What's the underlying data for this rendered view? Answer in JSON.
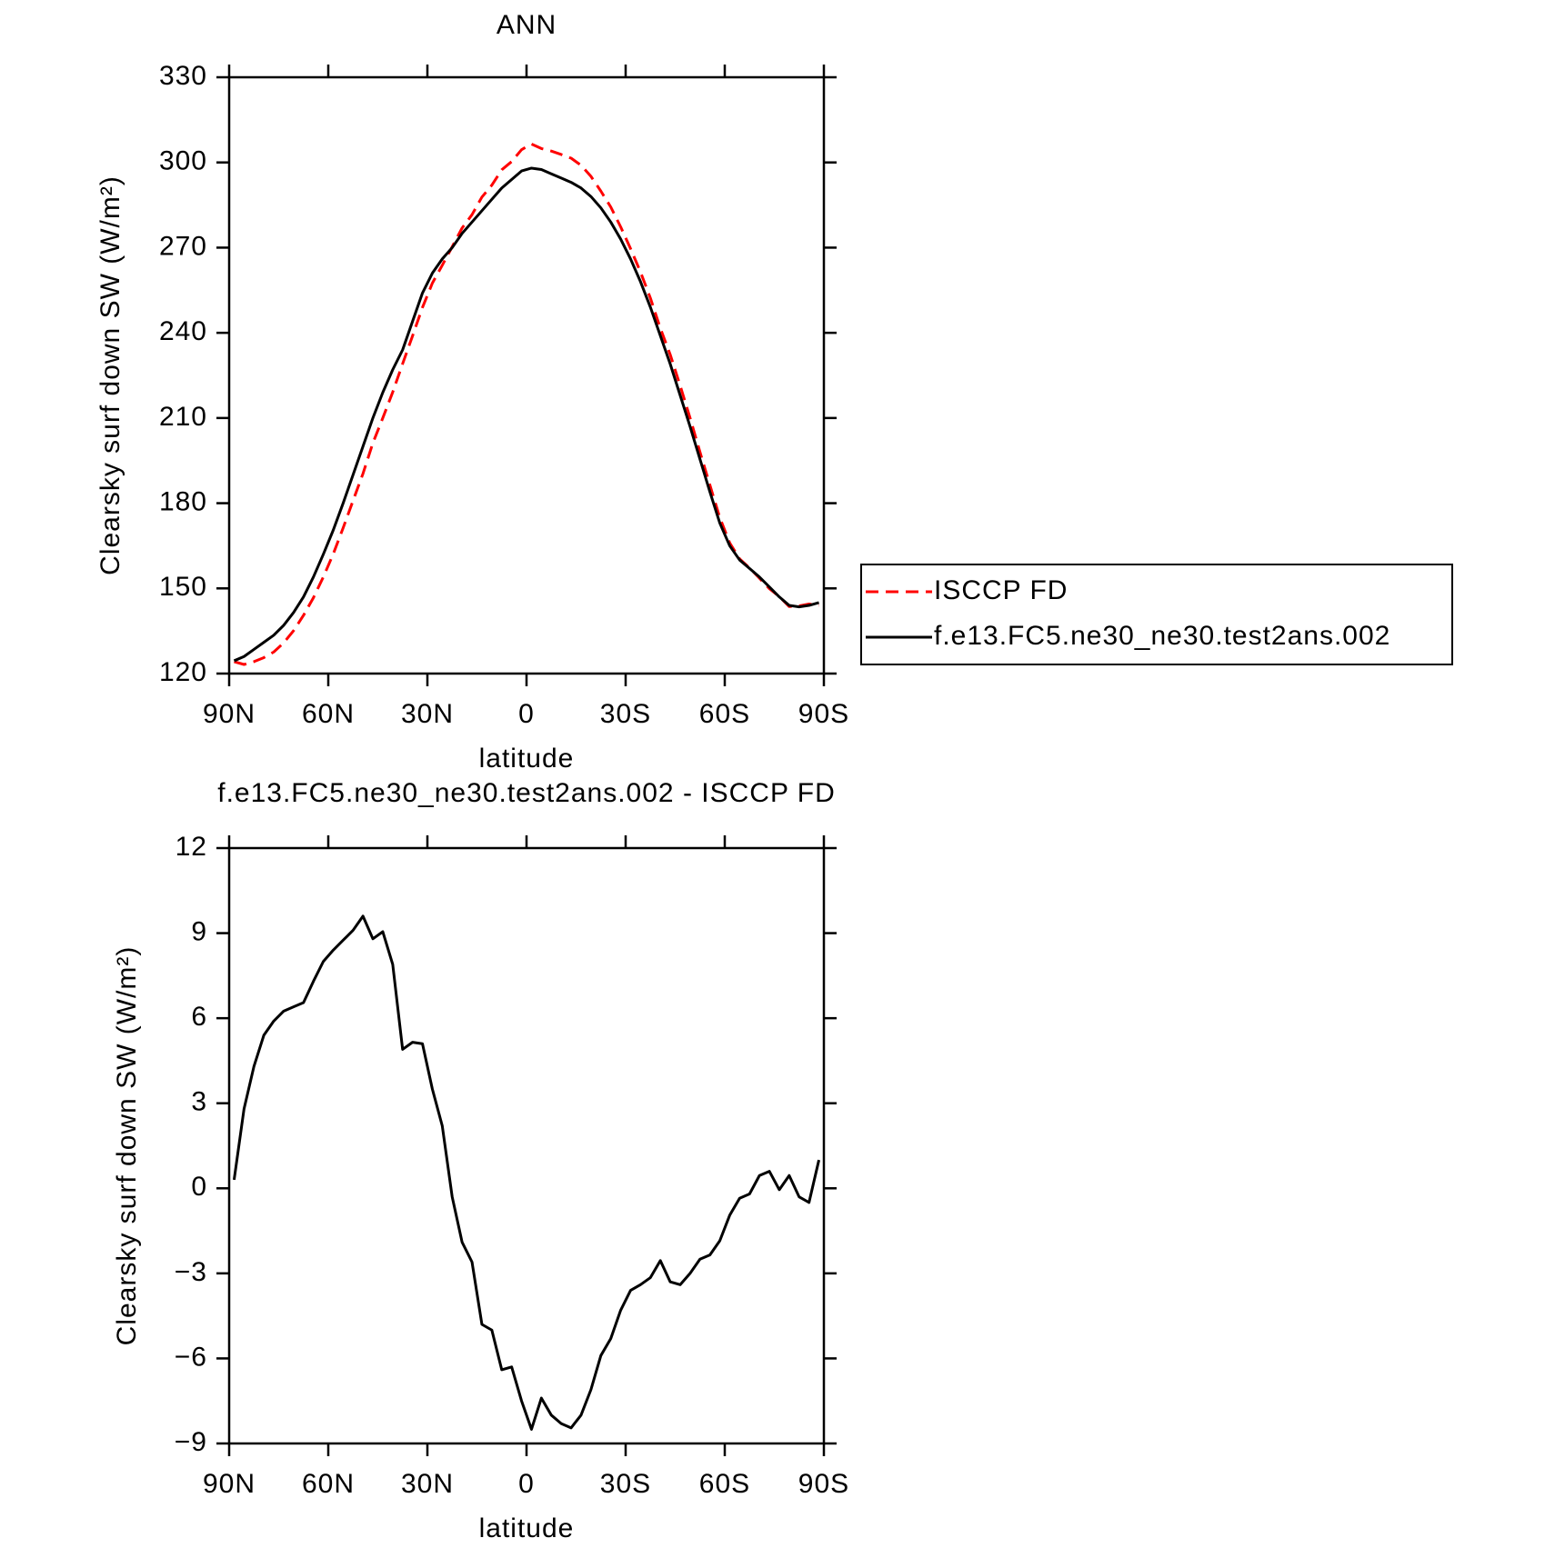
{
  "chart_data": [
    {
      "type": "line",
      "title": "ANN",
      "xlabel": "latitude",
      "ylabel": "Clearsky surf down SW (W/m²)",
      "x": [
        88.5,
        85.5,
        82.5,
        79.5,
        76.5,
        73.5,
        70.5,
        67.5,
        64.5,
        61.5,
        58.5,
        55.5,
        52.5,
        49.5,
        46.5,
        43.5,
        40.5,
        37.5,
        34.5,
        31.5,
        28.5,
        25.5,
        22.5,
        19.5,
        16.5,
        13.5,
        10.5,
        7.5,
        4.5,
        1.5,
        -1.5,
        -4.5,
        -7.5,
        -10.5,
        -13.5,
        -16.5,
        -19.5,
        -22.5,
        -25.5,
        -28.5,
        -31.5,
        -34.5,
        -37.5,
        -40.5,
        -43.5,
        -46.5,
        -49.5,
        -52.5,
        -55.5,
        -58.5,
        -61.5,
        -64.5,
        -67.5,
        -70.5,
        -73.5,
        -76.5,
        -79.5,
        -82.5,
        -85.5,
        -88.5
      ],
      "series": [
        {
          "name": "ISCCP FD",
          "color": "#ff0000",
          "dashed": true,
          "values": [
            124.2,
            123.2,
            124.2,
            125.6,
            127.6,
            130.8,
            135.1,
            140.5,
            146.7,
            154,
            162.1,
            171.3,
            180.9,
            190.4,
            201.2,
            210,
            219.1,
            229.1,
            238.9,
            248.9,
            257.5,
            263.8,
            270.3,
            276.9,
            281.6,
            287.8,
            292,
            297.4,
            300.3,
            304.5,
            306.5,
            304.9,
            304,
            302.8,
            301.5,
            299,
            295.1,
            289.9,
            284.3,
            277.3,
            269.6,
            261.4,
            252.2,
            241.6,
            232.3,
            221.4,
            210,
            198,
            186.4,
            174.9,
            166,
            160.4,
            157.2,
            153.6,
            149.9,
            147.1,
            143.6,
            143.8,
            144.5,
            144
          ]
        },
        {
          "name": "f.e13.FC5.ne30_ne30.test2ans.002",
          "color": "#000000",
          "dashed": false,
          "values": [
            124.5,
            126,
            128.5,
            131,
            133.5,
            137,
            141.5,
            147,
            154,
            162,
            170.5,
            180,
            190,
            200,
            210,
            219,
            227,
            234,
            244,
            254,
            261,
            266,
            270,
            275,
            279,
            283,
            287,
            291,
            294,
            297,
            298,
            297.5,
            296,
            294.5,
            293,
            291,
            288,
            284,
            279,
            273,
            266,
            258,
            249,
            239,
            229,
            218,
            207,
            195.5,
            184,
            173,
            165,
            160,
            157,
            154,
            150.5,
            147,
            144,
            143.5,
            144,
            145
          ]
        }
      ],
      "xlim": [
        90,
        -90
      ],
      "ylim": [
        120,
        330
      ],
      "xticks": [
        {
          "value": 90,
          "label": "90N"
        },
        {
          "value": 60,
          "label": "60N"
        },
        {
          "value": 30,
          "label": "30N"
        },
        0,
        {
          "value": -30,
          "label": "30S"
        },
        {
          "value": -60,
          "label": "60S"
        },
        {
          "value": -90,
          "label": "90S"
        }
      ],
      "yticks": [
        120,
        150,
        180,
        210,
        240,
        270,
        300,
        330
      ],
      "legend": "right"
    },
    {
      "type": "line",
      "title": "f.e13.FC5.ne30_ne30.test2ans.002 - ISCCP FD",
      "xlabel": "latitude",
      "ylabel": "Clearsky surf down SW (W/m²)",
      "x": [
        88.5,
        85.5,
        82.5,
        79.5,
        76.5,
        73.5,
        70.5,
        67.5,
        64.5,
        61.5,
        58.5,
        55.5,
        52.5,
        49.5,
        46.5,
        43.5,
        40.5,
        37.5,
        34.5,
        31.5,
        28.5,
        25.5,
        22.5,
        19.5,
        16.5,
        13.5,
        10.5,
        7.5,
        4.5,
        1.5,
        -1.5,
        -4.5,
        -7.5,
        -10.5,
        -13.5,
        -16.5,
        -19.5,
        -22.5,
        -25.5,
        -28.5,
        -31.5,
        -34.5,
        -37.5,
        -40.5,
        -43.5,
        -46.5,
        -49.5,
        -52.5,
        -55.5,
        -58.5,
        -61.5,
        -64.5,
        -67.5,
        -70.5,
        -73.5,
        -76.5,
        -79.5,
        -82.5,
        -85.5,
        -88.5
      ],
      "series": [
        {
          "color": "#000000",
          "dashed": false,
          "values": [
            0.3,
            2.8,
            4.3,
            5.4,
            5.9,
            6.25,
            6.4,
            6.55,
            7.3,
            8.0,
            8.4,
            8.75,
            9.1,
            9.6,
            8.8,
            9.05,
            7.9,
            4.9,
            5.15,
            5.1,
            3.5,
            2.2,
            -0.3,
            -1.9,
            -2.6,
            -4.8,
            -5.0,
            -6.4,
            -6.3,
            -7.5,
            -8.5,
            -7.4,
            -8.0,
            -8.3,
            -8.45,
            -8.0,
            -7.1,
            -5.9,
            -5.3,
            -4.3,
            -3.6,
            -3.4,
            -3.15,
            -2.55,
            -3.3,
            -3.4,
            -3.0,
            -2.5,
            -2.35,
            -1.85,
            -0.95,
            -0.35,
            -0.2,
            0.45,
            0.6,
            -0.05,
            0.45,
            -0.3,
            -0.5,
            1.0
          ]
        }
      ],
      "xlim": [
        90,
        -90
      ],
      "ylim": [
        -9,
        12
      ],
      "xticks": [
        {
          "value": 90,
          "label": "90N"
        },
        {
          "value": 60,
          "label": "60N"
        },
        {
          "value": 30,
          "label": "30N"
        },
        0,
        {
          "value": -30,
          "label": "30S"
        },
        {
          "value": -60,
          "label": "60S"
        },
        {
          "value": -90,
          "label": "90S"
        }
      ],
      "yticks": [
        {
          "value": -9,
          "label": "−9"
        },
        {
          "value": -6,
          "label": "−6"
        },
        {
          "value": -3,
          "label": "−3"
        },
        0,
        3,
        6,
        9,
        12
      ]
    }
  ]
}
